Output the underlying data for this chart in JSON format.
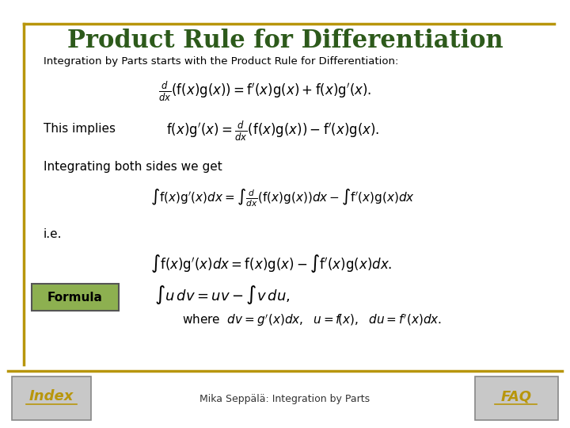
{
  "title": "Product Rule for Differentiation",
  "subtitle": "Integration by Parts starts with the Product Rule for Differentiation:",
  "bg_color": "#ffffff",
  "border_color": "#B8960C",
  "title_color": "#2D5A1B",
  "text_color": "#000000",
  "footer_text": "Mika Seppälä: Integration by Parts",
  "formula_box_color": "#8DB050",
  "formula_box_text": "Formula",
  "nav_box_color": "#C8C8C8",
  "nav_index_text": "Index",
  "nav_faq_text": "FAQ",
  "nav_text_color": "#B8960C"
}
